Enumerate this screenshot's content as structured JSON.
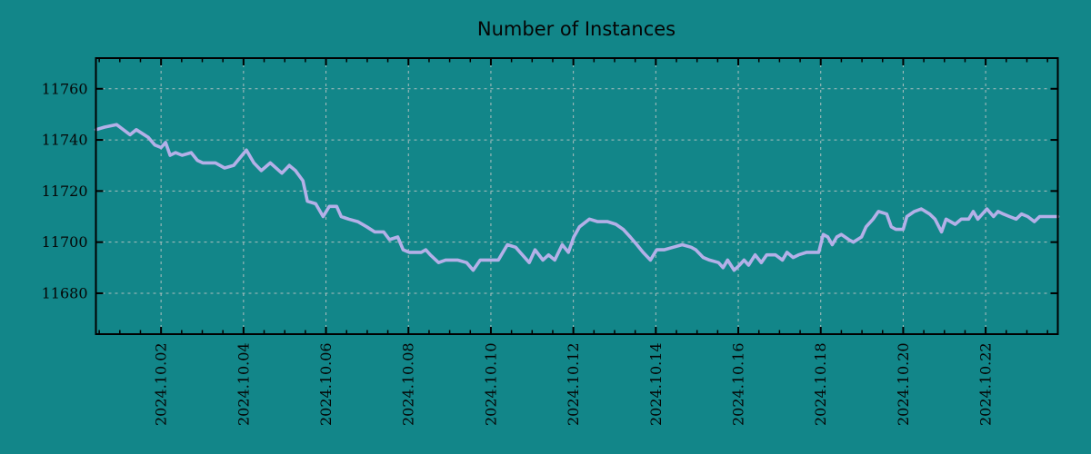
{
  "chart_data": {
    "type": "line",
    "title": "Number of Instances",
    "xlabel": "",
    "ylabel": "",
    "legend": "none",
    "grid": "dashed",
    "colors": {
      "background": "#128689",
      "line": "#b4b0e8",
      "grid": "#c9c9c9",
      "axis": "#000000",
      "text": "#050505"
    },
    "x_axis": {
      "unit": "days_since_2024_10_01",
      "domain": [
        -0.58,
        22.75
      ],
      "minor_tick_step": 0.5,
      "ticks": [
        {
          "t": 1,
          "label": "2024.10.02"
        },
        {
          "t": 3,
          "label": "2024.10.04"
        },
        {
          "t": 5,
          "label": "2024.10.06"
        },
        {
          "t": 7,
          "label": "2024.10.08"
        },
        {
          "t": 9,
          "label": "2024.10.10"
        },
        {
          "t": 11,
          "label": "2024.10.12"
        },
        {
          "t": 13,
          "label": "2024.10.14"
        },
        {
          "t": 15,
          "label": "2024.10.16"
        },
        {
          "t": 17,
          "label": "2024.10.18"
        },
        {
          "t": 19,
          "label": "2024.10.20"
        },
        {
          "t": 21,
          "label": "2024.10.22"
        }
      ]
    },
    "y_axis": {
      "domain": [
        11664,
        11772
      ],
      "ticks": [
        {
          "v": 11680,
          "label": "11680"
        },
        {
          "v": 11700,
          "label": "11700"
        },
        {
          "v": 11720,
          "label": "11720"
        },
        {
          "v": 11740,
          "label": "11740"
        },
        {
          "v": 11760,
          "label": "11760"
        }
      ]
    },
    "series": [
      {
        "points": [
          [
            -0.58,
            11744
          ],
          [
            -0.37,
            11745
          ],
          [
            -0.08,
            11746
          ],
          [
            0.25,
            11742
          ],
          [
            0.4,
            11744
          ],
          [
            0.69,
            11741
          ],
          [
            0.85,
            11738
          ],
          [
            1.0,
            11737
          ],
          [
            1.11,
            11739
          ],
          [
            1.22,
            11734
          ],
          [
            1.35,
            11735
          ],
          [
            1.51,
            11734
          ],
          [
            1.73,
            11735
          ],
          [
            1.88,
            11732
          ],
          [
            2.01,
            11731
          ],
          [
            2.32,
            11731
          ],
          [
            2.54,
            11729
          ],
          [
            2.76,
            11730
          ],
          [
            3.07,
            11736
          ],
          [
            3.25,
            11731
          ],
          [
            3.43,
            11728
          ],
          [
            3.65,
            11731
          ],
          [
            3.93,
            11727
          ],
          [
            4.11,
            11730
          ],
          [
            4.26,
            11728
          ],
          [
            4.44,
            11724
          ],
          [
            4.55,
            11716
          ],
          [
            4.75,
            11715
          ],
          [
            4.93,
            11710
          ],
          [
            5.08,
            11714
          ],
          [
            5.26,
            11714
          ],
          [
            5.37,
            11710
          ],
          [
            5.55,
            11709
          ],
          [
            5.77,
            11708
          ],
          [
            5.99,
            11706
          ],
          [
            6.18,
            11704
          ],
          [
            6.4,
            11704
          ],
          [
            6.54,
            11701
          ],
          [
            6.74,
            11702
          ],
          [
            6.87,
            11697
          ],
          [
            7.02,
            11696
          ],
          [
            7.31,
            11696
          ],
          [
            7.42,
            11697
          ],
          [
            7.53,
            11695
          ],
          [
            7.73,
            11692
          ],
          [
            7.9,
            11693
          ],
          [
            8.19,
            11693
          ],
          [
            8.41,
            11692
          ],
          [
            8.57,
            11689
          ],
          [
            8.74,
            11693
          ],
          [
            9.01,
            11693
          ],
          [
            9.18,
            11693
          ],
          [
            9.4,
            11699
          ],
          [
            9.6,
            11698
          ],
          [
            9.71,
            11696
          ],
          [
            9.93,
            11692
          ],
          [
            10.07,
            11697
          ],
          [
            10.26,
            11693
          ],
          [
            10.4,
            11695
          ],
          [
            10.55,
            11693
          ],
          [
            10.73,
            11699
          ],
          [
            10.88,
            11696
          ],
          [
            11.01,
            11702
          ],
          [
            11.15,
            11706
          ],
          [
            11.39,
            11709
          ],
          [
            11.59,
            11708
          ],
          [
            11.83,
            11708
          ],
          [
            12.03,
            11707
          ],
          [
            12.21,
            11705
          ],
          [
            12.38,
            11702
          ],
          [
            12.54,
            11699
          ],
          [
            12.69,
            11696
          ],
          [
            12.87,
            11693
          ],
          [
            13.02,
            11697
          ],
          [
            13.2,
            11697
          ],
          [
            13.42,
            11698
          ],
          [
            13.64,
            11699
          ],
          [
            13.86,
            11698
          ],
          [
            13.97,
            11697
          ],
          [
            14.15,
            11694
          ],
          [
            14.3,
            11693
          ],
          [
            14.52,
            11692
          ],
          [
            14.63,
            11690
          ],
          [
            14.74,
            11693
          ],
          [
            14.9,
            11689
          ],
          [
            15.03,
            11691
          ],
          [
            15.14,
            11693
          ],
          [
            15.25,
            11691
          ],
          [
            15.41,
            11695
          ],
          [
            15.56,
            11692
          ],
          [
            15.69,
            11695
          ],
          [
            15.9,
            11695
          ],
          [
            16.07,
            11693
          ],
          [
            16.18,
            11696
          ],
          [
            16.33,
            11694
          ],
          [
            16.46,
            11695
          ],
          [
            16.66,
            11696
          ],
          [
            16.79,
            11696
          ],
          [
            16.95,
            11696
          ],
          [
            17.06,
            11703
          ],
          [
            17.17,
            11702
          ],
          [
            17.28,
            11699
          ],
          [
            17.39,
            11702
          ],
          [
            17.5,
            11703
          ],
          [
            17.68,
            11701
          ],
          [
            17.79,
            11700
          ],
          [
            17.99,
            11702
          ],
          [
            18.1,
            11706
          ],
          [
            18.27,
            11709
          ],
          [
            18.4,
            11712
          ],
          [
            18.6,
            11711
          ],
          [
            18.71,
            11706
          ],
          [
            18.82,
            11705
          ],
          [
            19.0,
            11705
          ],
          [
            19.09,
            11710
          ],
          [
            19.27,
            11712
          ],
          [
            19.44,
            11713
          ],
          [
            19.64,
            11711
          ],
          [
            19.77,
            11709
          ],
          [
            19.93,
            11704
          ],
          [
            20.04,
            11709
          ],
          [
            20.26,
            11707
          ],
          [
            20.41,
            11709
          ],
          [
            20.59,
            11709
          ],
          [
            20.7,
            11712
          ],
          [
            20.81,
            11709
          ],
          [
            20.92,
            11711
          ],
          [
            21.03,
            11713
          ],
          [
            21.19,
            11710
          ],
          [
            21.3,
            11712
          ],
          [
            21.43,
            11711
          ],
          [
            21.58,
            11710
          ],
          [
            21.74,
            11709
          ],
          [
            21.87,
            11711
          ],
          [
            22.02,
            11710
          ],
          [
            22.18,
            11708
          ],
          [
            22.31,
            11710
          ],
          [
            22.46,
            11710
          ],
          [
            22.62,
            11710
          ],
          [
            22.75,
            11710
          ]
        ]
      }
    ]
  }
}
